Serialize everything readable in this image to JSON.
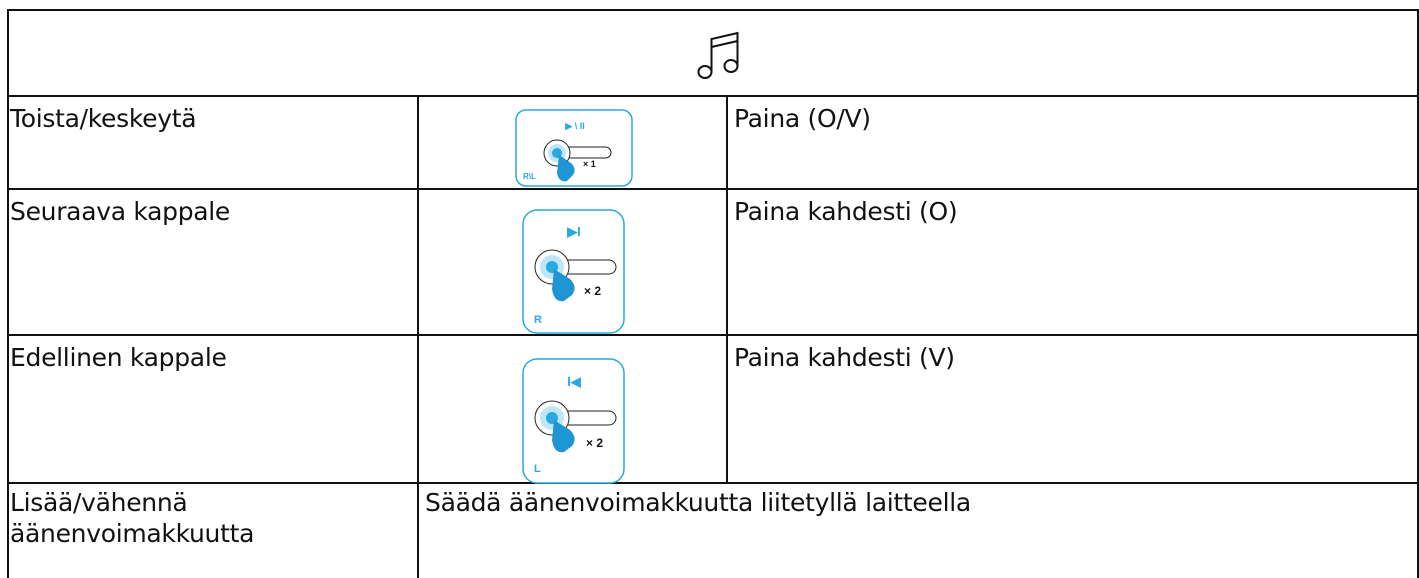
{
  "table": {
    "rows": [
      {
        "action": "Toista/keskeytä",
        "icon": {
          "symbol": "▶ \\ II",
          "count": "× 1",
          "side": "R\\L"
        },
        "instruction": "Paina (O/V)"
      },
      {
        "action": "Seuraava kappale",
        "icon": {
          "symbol": "▶I",
          "count": "× 2",
          "side": "R"
        },
        "instruction": "Paina kahdesti (O)"
      },
      {
        "action": "Edellinen kappale",
        "icon": {
          "symbol": "I◀",
          "count": "× 2",
          "side": "L"
        },
        "instruction": "Paina kahdesti (V)"
      },
      {
        "action": "Lisää/vähennä äänenvoimakkuutta",
        "instruction": "Säädä äänenvoimakkuutta liitetyllä laitteella"
      }
    ]
  }
}
